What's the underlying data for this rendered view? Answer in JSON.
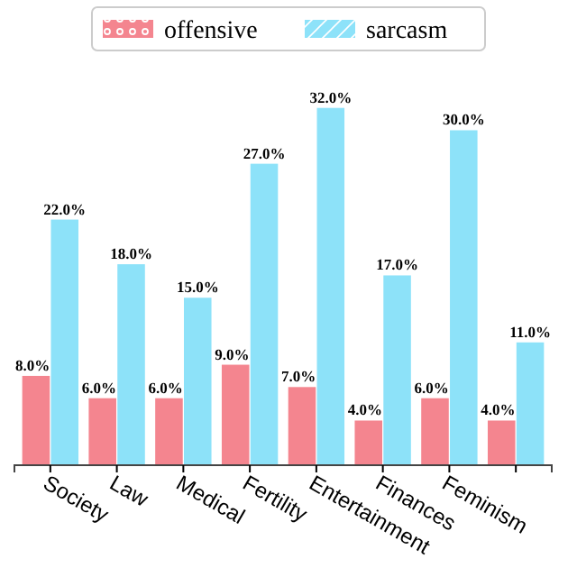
{
  "chart_data": {
    "type": "bar",
    "categories": [
      "Society",
      "Law",
      "Medical",
      "Fertility",
      "Entertainment",
      "Finances",
      "Feminism",
      null
    ],
    "series": [
      {
        "name": "offensive",
        "color": "#f4858f",
        "values": [
          8.0,
          6.0,
          6.0,
          9.0,
          7.0,
          4.0,
          6.0,
          4.0
        ],
        "value_labels": [
          "8.0%",
          "6.0%",
          "6.0%",
          "9.0%",
          "7.0%",
          "4.0%",
          "6.0%",
          "4.0%"
        ]
      },
      {
        "name": "sarcasm",
        "color": "#8de2f9",
        "values": [
          22.0,
          18.0,
          15.0,
          27.0,
          32.0,
          17.0,
          30.0,
          11.0
        ],
        "value_labels": [
          "22.0%",
          "18.0%",
          "15.0%",
          "27.0%",
          "32.0%",
          "17.0%",
          "30.0%",
          "11.0%"
        ]
      }
    ],
    "tick_labels": "x",
    "legend": "top"
  }
}
